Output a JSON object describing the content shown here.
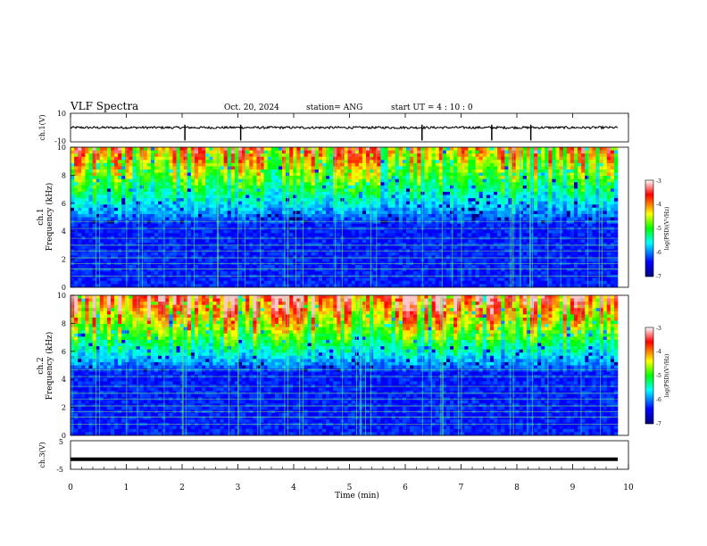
{
  "header": {
    "title": "VLF Spectra",
    "date": "Oct. 20, 2024",
    "station": "station= ANG",
    "start": "start  UT =   4 : 10 : 0"
  },
  "chart_data": [
    {
      "type": "line",
      "panel": "ch.1 waveform",
      "ylabel": "ch.1(V)",
      "ylim": [
        -10,
        10
      ],
      "yticks": [
        "10",
        "-10"
      ],
      "xlim": [
        0,
        10
      ],
      "baseline": 0,
      "spikes_x": [
        2.05,
        3.05,
        6.3,
        7.55,
        8.25
      ]
    },
    {
      "type": "heatmap",
      "panel": "ch.1 spectrogram",
      "ylabel": "ch.1\nFrequency (kHz)",
      "ylim": [
        0,
        10
      ],
      "yticks": [
        "0",
        "2",
        "4",
        "6",
        "8",
        "10"
      ],
      "xlim": [
        0,
        9.8
      ],
      "colorbar": {
        "label": "log(PSD)(V²/Hz)",
        "range": [
          -7,
          -3
        ],
        "ticks": [
          "-3",
          "-4",
          "-5",
          "-6",
          "-7"
        ]
      }
    },
    {
      "type": "heatmap",
      "panel": "ch.2 spectrogram",
      "ylabel": "ch.2\nFrequency (kHz)",
      "ylim": [
        0,
        10
      ],
      "yticks": [
        "0",
        "2",
        "4",
        "6",
        "8",
        "10"
      ],
      "xlim": [
        0,
        9.8
      ],
      "colorbar": {
        "label": "log(PSD)(V²/Hz)",
        "range": [
          -7,
          -3
        ],
        "ticks": [
          "-3",
          "-4",
          "-5",
          "-6",
          "-7"
        ]
      }
    },
    {
      "type": "line",
      "panel": "ch.3 waveform",
      "ylabel": "ch.3(V)",
      "ylim": [
        -5,
        5
      ],
      "yticks": [
        "5",
        "-5"
      ],
      "xlim": [
        0,
        10
      ],
      "constant_value": -1.5
    }
  ],
  "xaxis": {
    "label": "Time (min)",
    "ticks": [
      "0",
      "1",
      "2",
      "3",
      "4",
      "5",
      "6",
      "7",
      "8",
      "9",
      "10"
    ],
    "range": [
      0,
      10
    ]
  }
}
